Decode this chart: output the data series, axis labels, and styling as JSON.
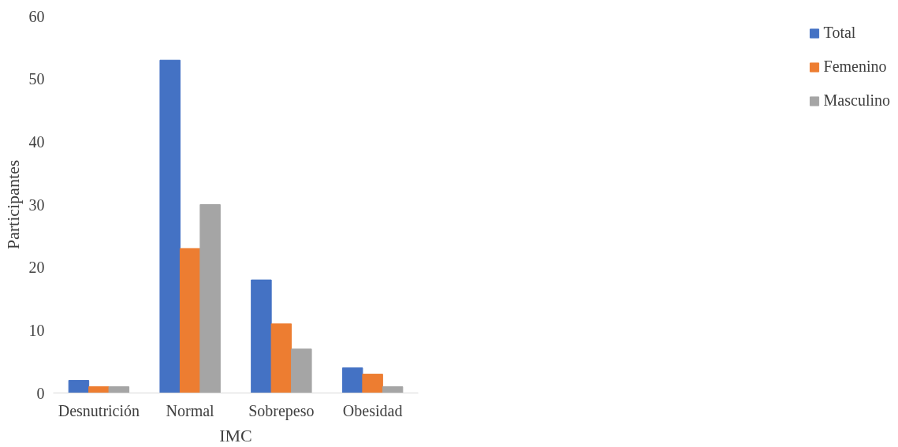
{
  "chart_data": {
    "type": "bar",
    "xlabel": "IMC",
    "ylabel": "Participantes",
    "categories": [
      "Desnutrición",
      "Normal",
      "Sobrepeso",
      "Obesidad"
    ],
    "series": [
      {
        "name": "Total",
        "color": "#4472c4",
        "values": [
          2,
          53,
          18,
          4
        ]
      },
      {
        "name": "Femenino",
        "color": "#ed7d31",
        "values": [
          1,
          23,
          11,
          3
        ]
      },
      {
        "name": "Masculino",
        "color": "#a5a5a5",
        "values": [
          1,
          30,
          7,
          1
        ]
      }
    ],
    "ylim": [
      0,
      60
    ],
    "yticks": [
      0,
      10,
      20,
      30,
      40,
      50,
      60
    ],
    "grid": false,
    "legend": "right"
  }
}
